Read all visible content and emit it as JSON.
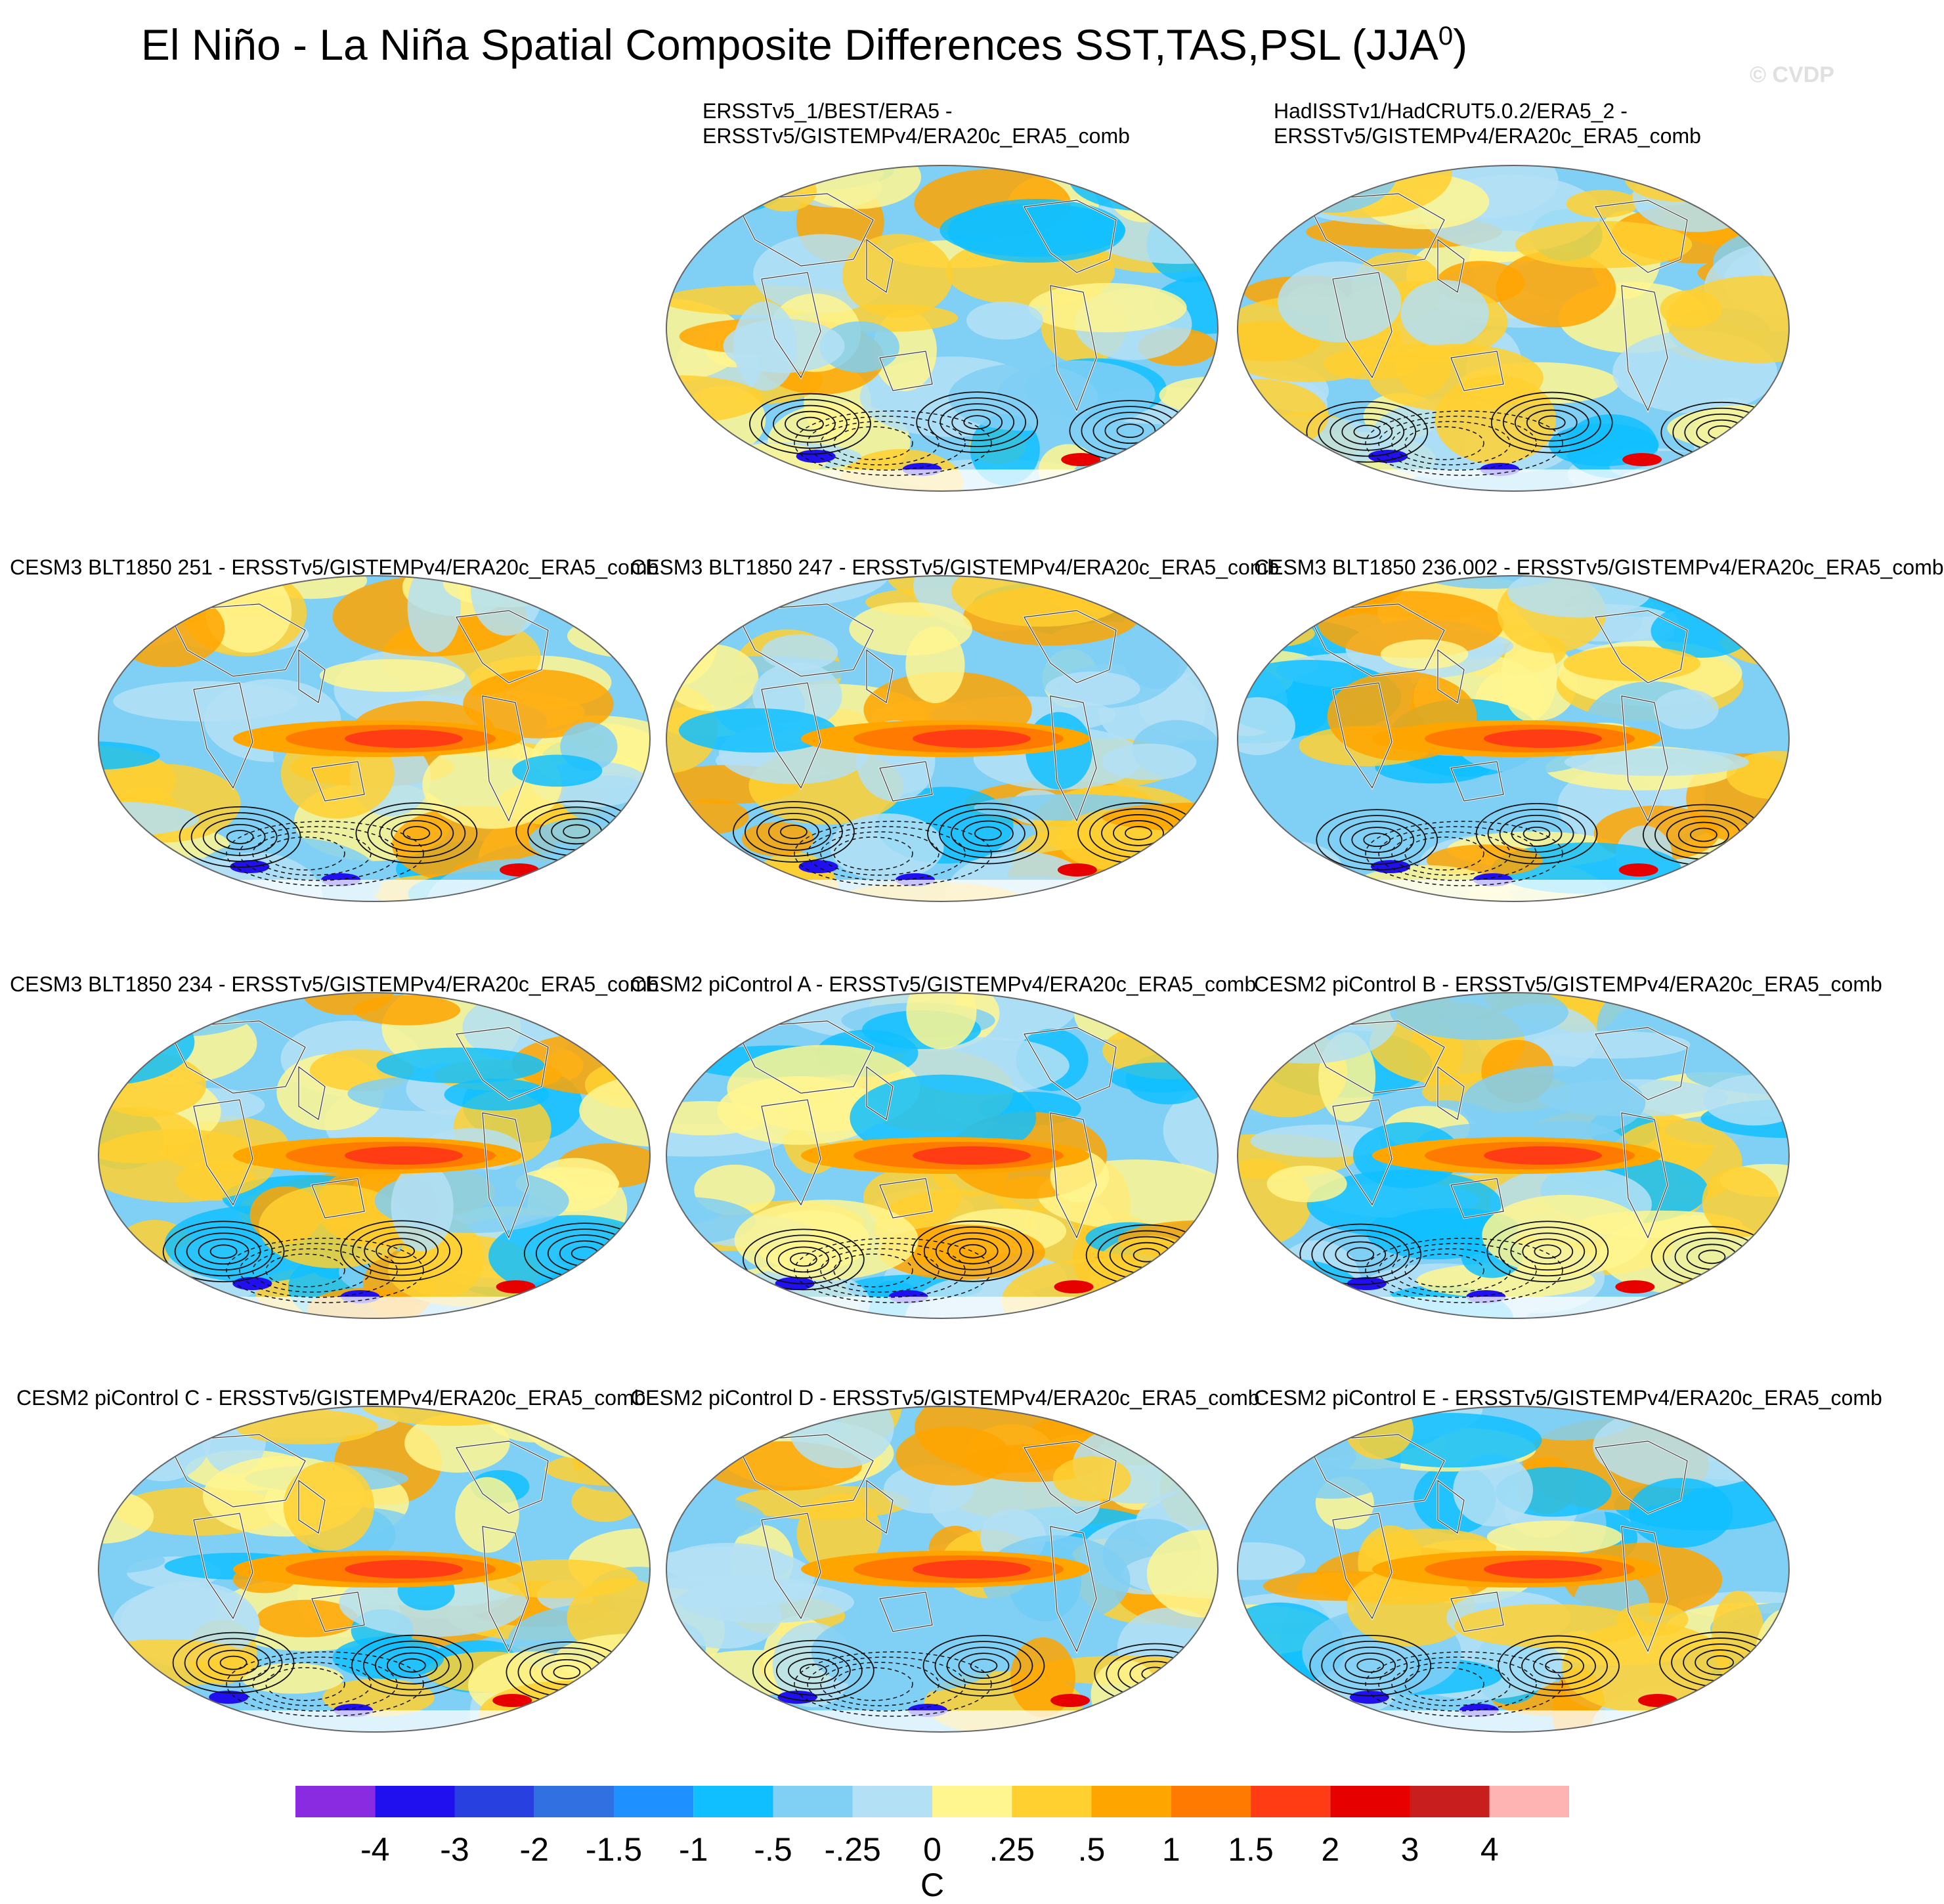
{
  "title": "El Niño - La Niña Spatial Composite Differences SST,TAS,PSL (JJA",
  "title_sup": "0",
  "title_end": ")",
  "credit": "© CVDP",
  "panels": [
    {
      "label": "ERSSTv5_1/BEST/ERA5 -",
      "label2": "ERSSTv5/GISTEMPv4/ERA20c_ERA5_comb",
      "variant": 0
    },
    {
      "label": "HadISSTv1/HadCRUT5.0.2/ERA5_2 -",
      "label2": "ERSSTv5/GISTEMPv4/ERA20c_ERA5_comb",
      "variant": 1
    },
    {
      "label": "CESM3 BLT1850 251 - ERSSTv5/GISTEMPv4/ERA20c_ERA5_comb",
      "variant": 2
    },
    {
      "label": "CESM3 BLT1850 247 - ERSSTv5/GISTEMPv4/ERA20c_ERA5_comb",
      "variant": 3
    },
    {
      "label": "CESM3 BLT1850 236.002 - ERSSTv5/GISTEMPv4/ERA20c_ERA5_comb",
      "variant": 4
    },
    {
      "label": "CESM3 BLT1850 234 - ERSSTv5/GISTEMPv4/ERA20c_ERA5_comb",
      "variant": 5
    },
    {
      "label": "CESM2 piControl A - ERSSTv5/GISTEMPv4/ERA20c_ERA5_comb",
      "variant": 6
    },
    {
      "label": "CESM2 piControl B - ERSSTv5/GISTEMPv4/ERA20c_ERA5_comb",
      "variant": 7
    },
    {
      "label": "CESM2 piControl C - ERSSTv5/GISTEMPv4/ERA20c_ERA5_comb",
      "variant": 8
    },
    {
      "label": "CESM2 piControl D - ERSSTv5/GISTEMPv4/ERA20c_ERA5_comb",
      "variant": 9
    },
    {
      "label": "CESM2 piControl E - ERSSTv5/GISTEMPv4/ERA20c_ERA5_comb",
      "variant": 10
    }
  ],
  "colorbar": {
    "colors": [
      "#8a2be2",
      "#2010f0",
      "#2840e0",
      "#3070e0",
      "#1e90ff",
      "#10bfff",
      "#80cff5",
      "#b4e0f5",
      "#fff68f",
      "#ffd030",
      "#ffa500",
      "#ff7a00",
      "#ff3c14",
      "#e60000",
      "#c81e1e",
      "#ffb4b4"
    ],
    "labels": [
      "-4",
      "-3",
      "-2",
      "-1.5",
      "-1",
      "-.5",
      "-.25",
      "0",
      ".25",
      ".5",
      "1",
      "1.5",
      "2",
      "3",
      "4"
    ],
    "units": "C"
  }
}
